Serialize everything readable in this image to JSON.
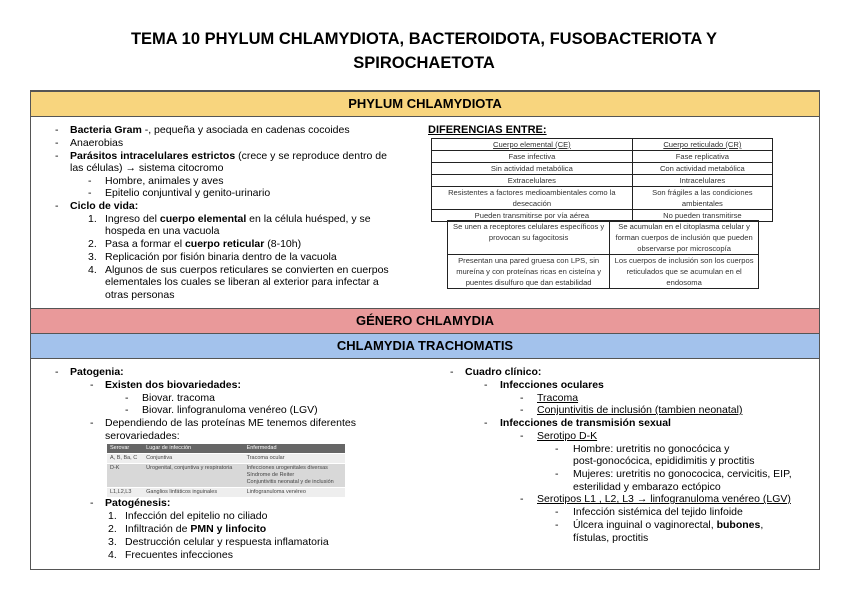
{
  "title_line1": "TEMA 10 PHYLUM CHLAMYDIOTA, BACTEROIDOTA, FUSOBACTERIOTA Y",
  "title_line2": "SPIROCHAETOTA",
  "colors": {
    "phylum_band": "#f8d57e",
    "genero_band": "#e9999a",
    "trachomatis_band": "#a3c2ec"
  },
  "phylum": {
    "header": "PHYLUM CHLAMYDIOTA",
    "lines": [
      {
        "m": "-",
        "parts": [
          {
            "t": "Bacteria Gram",
            "b": true
          },
          {
            "t": " -, pequeña y asociada en cadenas cocoides"
          }
        ]
      },
      {
        "m": "-",
        "parts": [
          {
            "t": "Anaerobias"
          }
        ]
      },
      {
        "m": "-",
        "parts": [
          {
            "t": "Parásitos intracelulares estrictos",
            "b": true
          },
          {
            "t": " (crece y se reproduce dentro de"
          }
        ]
      },
      {
        "m": "",
        "parts": [
          {
            "t": "las células) → sistema citocromo"
          }
        ]
      },
      {
        "m": "-",
        "parts": [
          {
            "t": "Hombre, animales y aves"
          }
        ]
      },
      {
        "m": "-",
        "parts": [
          {
            "t": "Epitelio conjuntival y genito-urinario"
          }
        ]
      },
      {
        "m": "-",
        "parts": [
          {
            "t": "Ciclo de vida:",
            "b": true
          }
        ]
      },
      {
        "m": "1.",
        "parts": [
          {
            "t": "Ingreso del "
          },
          {
            "t": "cuerpo elemental",
            "b": true
          },
          {
            "t": " en la célula huésped, y se"
          }
        ]
      },
      {
        "m": "",
        "parts": [
          {
            "t": "hospeda en una vacuola"
          }
        ]
      },
      {
        "m": "2.",
        "parts": [
          {
            "t": "Pasa a formar el "
          },
          {
            "t": "cuerpo reticular",
            "b": true
          },
          {
            "t": " (8-10h)"
          }
        ]
      },
      {
        "m": "3.",
        "parts": [
          {
            "t": "Replicación por fisión binaria dentro de la vacuola"
          }
        ]
      },
      {
        "m": "4.",
        "parts": [
          {
            "t": "Algunos de sus cuerpos reticulares se convierten en cuerpos"
          }
        ]
      },
      {
        "m": "",
        "parts": [
          {
            "t": "elementales los cuales se liberan al exterior para infectar a"
          }
        ]
      },
      {
        "m": "",
        "parts": [
          {
            "t": "otras personas"
          }
        ]
      }
    ]
  },
  "diferencias": {
    "title": "DIFERENCIAS ENTRE:",
    "table1": [
      [
        "Cuerpo elemental (CE)",
        "Cuerpo reticulado (CR)"
      ],
      [
        "Fase infectiva",
        "Fase replicativa"
      ],
      [
        "Sin actividad metabólica",
        "Con actividad metabólica"
      ],
      [
        "Extracelulares",
        "Intracelulares"
      ],
      [
        "Resistentes a factores medioambientales como la desecación",
        "Son frágiles a las condiciones ambientales"
      ],
      [
        "Pueden transmitirse por vía aérea",
        "No pueden transmitirse"
      ]
    ],
    "table2": [
      [
        "Se unen a receptores celulares específicos y provocan su fagocitosis",
        "Se acumulan en el citoplasma celular y forman cuerpos de inclusión que pueden observarse por microscopía"
      ],
      [
        "Presentan una pared gruesa con LPS, sin mureína y con proteínas ricas en cisteína y puentes disulfuro que dan estabilidad",
        "Los cuerpos de inclusión son los cuerpos reticulados que se acumulan en el endosoma"
      ]
    ]
  },
  "genero": {
    "header": "GÉNERO CHLAMYDIA"
  },
  "trachomatis": {
    "header": "CHLAMYDIA TRACHOMATIS",
    "left": [
      {
        "m": "-",
        "parts": [
          {
            "t": "Patogenia:",
            "b": true
          }
        ]
      },
      {
        "m": "-",
        "parts": [
          {
            "t": "Existen dos biovariedades:",
            "b": true
          }
        ]
      },
      {
        "m": "-",
        "parts": [
          {
            "t": "Biovar. tracoma"
          }
        ]
      },
      {
        "m": "-",
        "parts": [
          {
            "t": "Biovar. linfogranuloma venéreo (LGV)"
          }
        ]
      },
      {
        "m": "-",
        "parts": [
          {
            "t": "Dependiendo de las proteínas ME tenemos diferentes"
          }
        ]
      },
      {
        "m": "",
        "parts": [
          {
            "t": "serovariedades:"
          }
        ]
      },
      {
        "m": "-",
        "parts": [
          {
            "t": "Patogénesis:",
            "b": true
          }
        ]
      },
      {
        "m": "1.",
        "parts": [
          {
            "t": "Infección del epitelio no ciliado"
          }
        ]
      },
      {
        "m": "2.",
        "parts": [
          {
            "t": "Infiltración de "
          },
          {
            "t": "PMN y linfocito",
            "b": true
          }
        ]
      },
      {
        "m": "3.",
        "parts": [
          {
            "t": "Destrucción celular y respuesta inflamatoria"
          }
        ]
      },
      {
        "m": "4.",
        "parts": [
          {
            "t": "Frecuentes infecciones"
          }
        ]
      }
    ],
    "serovar_table": [
      [
        "Serovar",
        "Lugar de infección",
        "Enfermedad"
      ],
      [
        "A, B, Ba, C",
        "Conjuntiva",
        "Tracoma ocular"
      ],
      [
        "D-K",
        "Urogenital, conjuntiva y respiratoria",
        "Infecciones urogenitales diversas\nSíndrome de Reiter\nConjuntivitis neonatal y de inclusión"
      ],
      [
        "L1,L2,L3",
        "Ganglios linfáticos inguinales",
        "Linfogranuloma venéreo"
      ]
    ],
    "right": [
      {
        "m": "-",
        "parts": [
          {
            "t": "Cuadro clínico:",
            "b": true
          }
        ]
      },
      {
        "m": "-",
        "parts": [
          {
            "t": "Infecciones oculares",
            "b": true
          }
        ]
      },
      {
        "m": "-",
        "parts": [
          {
            "t": "Tracoma",
            "u": true
          }
        ]
      },
      {
        "m": "-",
        "parts": [
          {
            "t": "Conjuntivitis de inclusión (tambien neonatal)",
            "u": true
          }
        ]
      },
      {
        "m": "-",
        "parts": [
          {
            "t": "Infecciones de transmisión sexual",
            "b": true
          }
        ]
      },
      {
        "m": "-",
        "parts": [
          {
            "t": "Serotipo D-K",
            "u": true
          }
        ]
      },
      {
        "m": "-",
        "parts": [
          {
            "t": "Hombre: uretritis no gonocócica y"
          }
        ]
      },
      {
        "m": "",
        "parts": [
          {
            "t": "post-gonocócica, epididimitis y proctitis"
          }
        ]
      },
      {
        "m": "-",
        "parts": [
          {
            "t": "Mujeres: uretritis no gonococica, cervicitis, EIP,"
          }
        ]
      },
      {
        "m": "",
        "parts": [
          {
            "t": "esterilidad y embarazo ectópico"
          }
        ]
      },
      {
        "m": "-",
        "parts": [
          {
            "t": "Serotipos L1 , L2, L3 → linfogranuloma venéreo (LGV)",
            "u": true
          }
        ]
      },
      {
        "m": "-",
        "parts": [
          {
            "t": "Infección sistémica del tejido linfoide"
          }
        ]
      },
      {
        "m": "-",
        "parts": [
          {
            "t": "Úlcera inguinal o vaginorectal, "
          },
          {
            "t": "bubones",
            "b": true
          },
          {
            "t": ","
          }
        ]
      },
      {
        "m": "",
        "parts": [
          {
            "t": "fístulas, proctitis"
          }
        ]
      }
    ]
  }
}
